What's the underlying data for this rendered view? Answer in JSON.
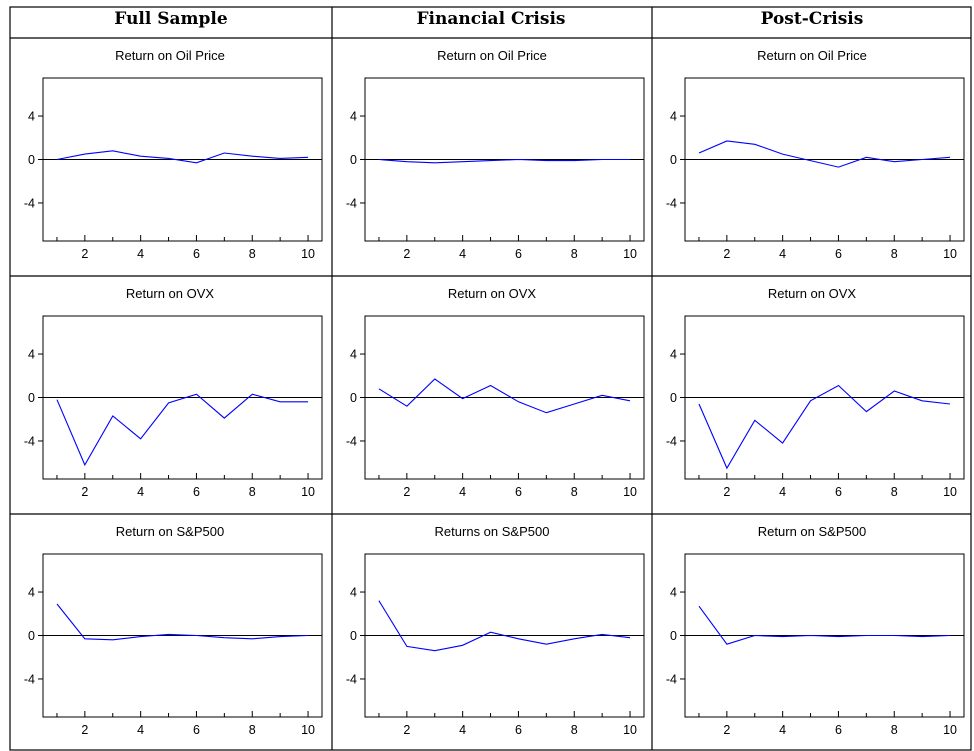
{
  "columns": [
    "Full Sample",
    "Financial Crisis",
    "Post-Crisis"
  ],
  "colors": {
    "series": "#0000ff",
    "zero_line": "#000000",
    "border": "#000000"
  },
  "chart_data": [
    {
      "type": "line",
      "title": "Return on Oil Price",
      "x": [
        1,
        2,
        3,
        4,
        5,
        6,
        7,
        8,
        9,
        10
      ],
      "series": [
        {
          "values": [
            0.0,
            0.5,
            0.8,
            0.3,
            0.1,
            -0.3,
            0.6,
            0.3,
            0.1,
            0.2
          ]
        }
      ],
      "ylim": [
        -7.5,
        7.5
      ],
      "xlim": [
        0.5,
        10.5
      ],
      "yticks": [
        4,
        0,
        -4
      ],
      "xticks": [
        2,
        4,
        6,
        8,
        10
      ],
      "zero_line": true
    },
    {
      "type": "line",
      "title": "Return on Oil Price",
      "x": [
        1,
        2,
        3,
        4,
        5,
        6,
        7,
        8,
        9,
        10
      ],
      "series": [
        {
          "values": [
            0.0,
            -0.2,
            -0.3,
            -0.2,
            -0.1,
            0.0,
            -0.1,
            -0.1,
            0.0,
            0.0
          ]
        }
      ],
      "ylim": [
        -7.5,
        7.5
      ],
      "xlim": [
        0.5,
        10.5
      ],
      "yticks": [
        4,
        0,
        -4
      ],
      "xticks": [
        2,
        4,
        6,
        8,
        10
      ],
      "zero_line": true
    },
    {
      "type": "line",
      "title": "Return on Oil Price",
      "x": [
        1,
        2,
        3,
        4,
        5,
        6,
        7,
        8,
        9,
        10
      ],
      "series": [
        {
          "values": [
            0.6,
            1.7,
            1.4,
            0.5,
            -0.1,
            -0.7,
            0.2,
            -0.2,
            0.0,
            0.2
          ]
        }
      ],
      "ylim": [
        -7.5,
        7.5
      ],
      "xlim": [
        0.5,
        10.5
      ],
      "yticks": [
        4,
        0,
        -4
      ],
      "xticks": [
        2,
        4,
        6,
        8,
        10
      ],
      "zero_line": true
    },
    {
      "type": "line",
      "title": "Return on OVX",
      "x": [
        1,
        2,
        3,
        4,
        5,
        6,
        7,
        8,
        9,
        10
      ],
      "series": [
        {
          "values": [
            -0.2,
            -6.2,
            -1.7,
            -3.8,
            -0.5,
            0.3,
            -1.9,
            0.3,
            -0.4,
            -0.4
          ]
        }
      ],
      "ylim": [
        -7.5,
        7.5
      ],
      "xlim": [
        0.5,
        10.5
      ],
      "yticks": [
        4,
        0,
        -4
      ],
      "xticks": [
        2,
        4,
        6,
        8,
        10
      ],
      "zero_line": true
    },
    {
      "type": "line",
      "title": "Return on OVX",
      "x": [
        1,
        2,
        3,
        4,
        5,
        6,
        7,
        8,
        9,
        10
      ],
      "series": [
        {
          "values": [
            0.8,
            -0.8,
            1.7,
            -0.1,
            1.1,
            -0.4,
            -1.4,
            -0.6,
            0.2,
            -0.3
          ]
        }
      ],
      "ylim": [
        -7.5,
        7.5
      ],
      "xlim": [
        0.5,
        10.5
      ],
      "yticks": [
        4,
        0,
        -4
      ],
      "xticks": [
        2,
        4,
        6,
        8,
        10
      ],
      "zero_line": true
    },
    {
      "type": "line",
      "title": "Return on OVX",
      "x": [
        1,
        2,
        3,
        4,
        5,
        6,
        7,
        8,
        9,
        10
      ],
      "series": [
        {
          "values": [
            -0.6,
            -6.5,
            -2.1,
            -4.2,
            -0.3,
            1.1,
            -1.3,
            0.6,
            -0.3,
            -0.6
          ]
        }
      ],
      "ylim": [
        -7.5,
        7.5
      ],
      "xlim": [
        0.5,
        10.5
      ],
      "yticks": [
        4,
        0,
        -4
      ],
      "xticks": [
        2,
        4,
        6,
        8,
        10
      ],
      "zero_line": true
    },
    {
      "type": "line",
      "title": "Return on S&P500",
      "x": [
        1,
        2,
        3,
        4,
        5,
        6,
        7,
        8,
        9,
        10
      ],
      "series": [
        {
          "values": [
            2.9,
            -0.3,
            -0.4,
            -0.1,
            0.1,
            0.0,
            -0.2,
            -0.3,
            -0.1,
            0.0
          ]
        }
      ],
      "ylim": [
        -7.5,
        7.5
      ],
      "xlim": [
        0.5,
        10.5
      ],
      "yticks": [
        4,
        0,
        -4
      ],
      "xticks": [
        2,
        4,
        6,
        8,
        10
      ],
      "zero_line": true
    },
    {
      "type": "line",
      "title": "Returns on S&P500",
      "x": [
        1,
        2,
        3,
        4,
        5,
        6,
        7,
        8,
        9,
        10
      ],
      "series": [
        {
          "values": [
            3.2,
            -1.0,
            -1.4,
            -0.9,
            0.3,
            -0.3,
            -0.8,
            -0.3,
            0.1,
            -0.2
          ]
        }
      ],
      "ylim": [
        -7.5,
        7.5
      ],
      "xlim": [
        0.5,
        10.5
      ],
      "yticks": [
        4,
        0,
        -4
      ],
      "xticks": [
        2,
        4,
        6,
        8,
        10
      ],
      "zero_line": true
    },
    {
      "type": "line",
      "title": "Return on S&P500",
      "x": [
        1,
        2,
        3,
        4,
        5,
        6,
        7,
        8,
        9,
        10
      ],
      "series": [
        {
          "values": [
            2.7,
            -0.8,
            0.0,
            -0.1,
            0.0,
            -0.1,
            0.0,
            0.0,
            -0.1,
            0.0
          ]
        }
      ],
      "ylim": [
        -7.5,
        7.5
      ],
      "xlim": [
        0.5,
        10.5
      ],
      "yticks": [
        4,
        0,
        -4
      ],
      "xticks": [
        2,
        4,
        6,
        8,
        10
      ],
      "zero_line": true
    }
  ]
}
